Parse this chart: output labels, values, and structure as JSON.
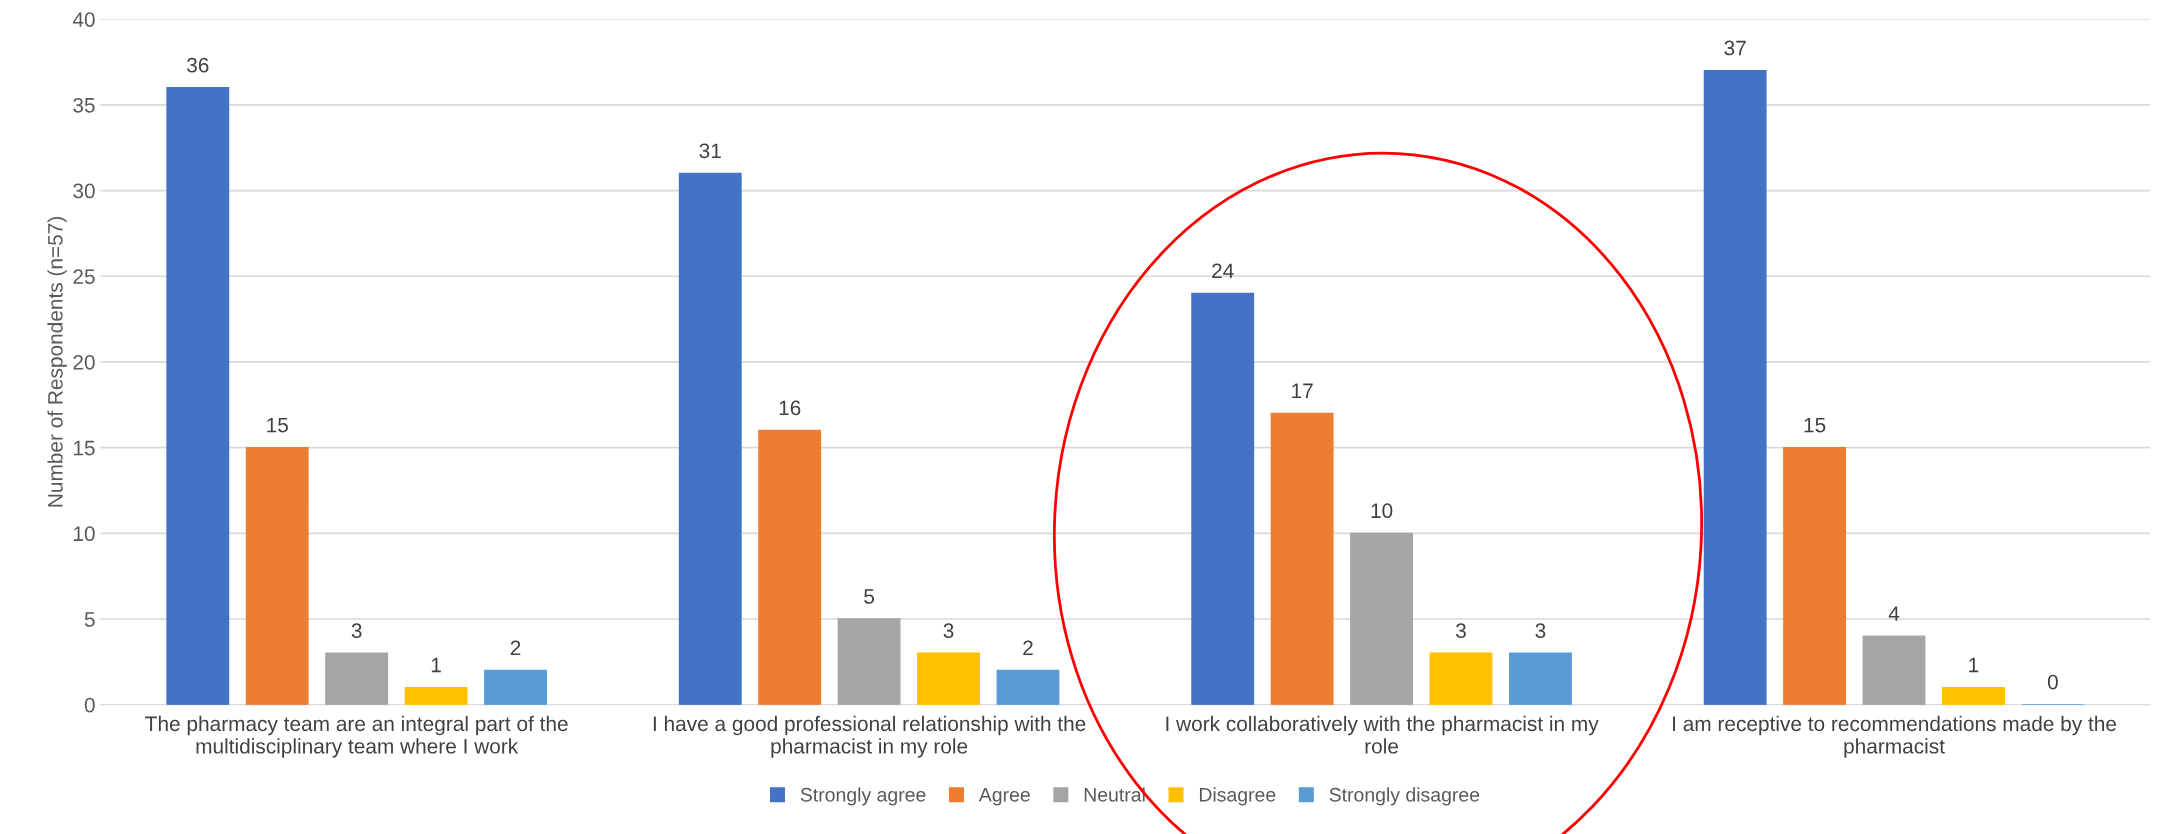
{
  "chart_data": {
    "type": "bar",
    "ylabel": "Number of Respondents (n=57)",
    "categories": [
      "The pharmacy team are an integral part of the\nmultidisciplinary team where I work",
      "I have a good professional relationship with the\npharmacist in my role",
      "I work collaboratively with the pharmacist in my\nrole",
      "I am receptive to recommendations made by the\npharmacist"
    ],
    "series": [
      {
        "name": "Strongly agree",
        "color": "#4472c4",
        "values": [
          36,
          31,
          24,
          37
        ]
      },
      {
        "name": "Agree",
        "color": "#ed7d31",
        "values": [
          15,
          16,
          17,
          15
        ]
      },
      {
        "name": "Neutral",
        "color": "#a5a5a5",
        "values": [
          3,
          5,
          10,
          4
        ]
      },
      {
        "name": "Disagree",
        "color": "#ffc000",
        "values": [
          1,
          3,
          3,
          1
        ]
      },
      {
        "name": "Strongly disagree",
        "color": "#5b9bd5",
        "values": [
          2,
          2,
          3,
          0
        ]
      }
    ],
    "ylim": [
      0,
      40
    ],
    "yticks": [
      0,
      5,
      10,
      15,
      20,
      25,
      30,
      35,
      40
    ],
    "grid": "y",
    "legend": "bottom",
    "data_labels": true
  }
}
